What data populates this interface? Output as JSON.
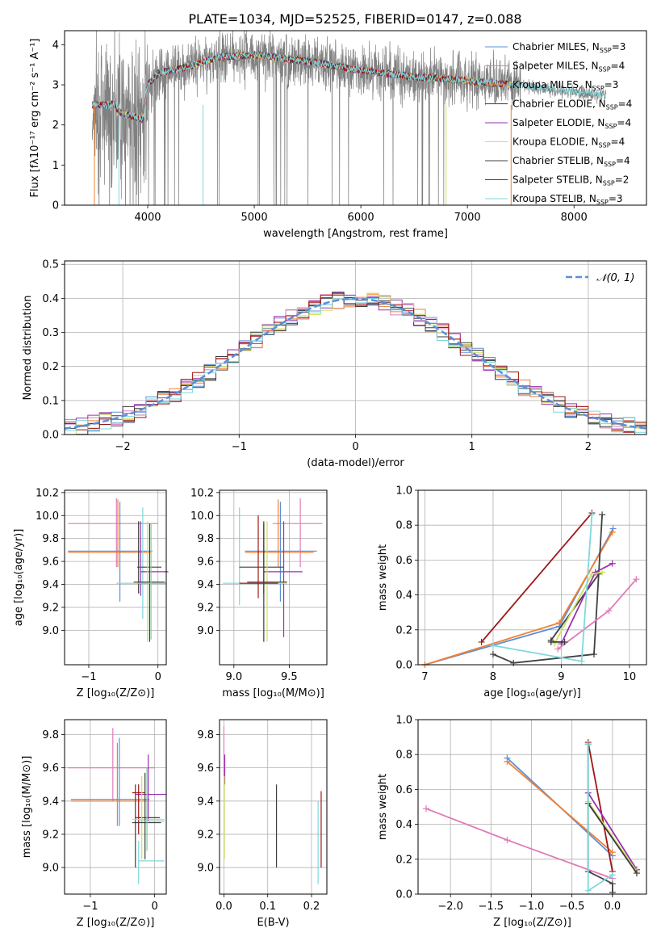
{
  "figure_title": "PLATE=1034, MJD=52525, FIBERID=0147, z=0.088",
  "colors": {
    "Chabrier MILES": "#5b8fd9",
    "Salpeter MILES": "#f28030",
    "Kroupa MILES": "#7fcfa0",
    "Chabrier ELODIE": "#3a3a3a",
    "Salpeter ELODIE": "#9a30b0",
    "Kroupa ELODIE": "#cfe060",
    "Chabrier STELIB": "#404040",
    "Salpeter STELIB": "#a01515",
    "Kroupa STELIB": "#7fd8dc",
    "Salpeter ELODIE alt": "#e07bb8",
    "normal": "#5b8fd9",
    "gray_data": "#808080"
  },
  "chart_data": [
    {
      "id": "spectrum",
      "type": "line",
      "title": "PLATE=1034, MJD=52525, FIBERID=0147, z=0.088",
      "xlabel": "wavelength [Angstrom, rest frame]",
      "ylabel": "Flux [fλ10⁻¹⁷ erg cm⁻² s⁻¹ A⁻¹]",
      "xlim": [
        3220,
        8680
      ],
      "ylim": [
        0,
        4.35
      ],
      "xticks": [
        4000,
        5000,
        6000,
        7000,
        8000
      ],
      "yticks": [
        0,
        1,
        2,
        3,
        4
      ],
      "x_range": [
        3480,
        7420
      ],
      "continuum": [
        [
          3480,
          2.5
        ],
        [
          3700,
          2.5
        ],
        [
          3720,
          2.35
        ],
        [
          3800,
          2.25
        ],
        [
          3900,
          2.2
        ],
        [
          3950,
          2.1
        ],
        [
          4000,
          3.0
        ],
        [
          4100,
          3.3
        ],
        [
          4300,
          3.4
        ],
        [
          4500,
          3.55
        ],
        [
          4700,
          3.7
        ],
        [
          5000,
          3.75
        ],
        [
          5300,
          3.65
        ],
        [
          5600,
          3.55
        ],
        [
          5900,
          3.4
        ],
        [
          6200,
          3.3
        ],
        [
          6500,
          3.2
        ],
        [
          6800,
          3.15
        ],
        [
          7000,
          3.1
        ],
        [
          7200,
          3.05
        ],
        [
          7420,
          3.0
        ]
      ],
      "data_extra_x_to": 8300,
      "legend": [
        {
          "label": "Chabrier MILES, N",
          "sub": "SSP",
          "tail": "=3"
        },
        {
          "label": "Salpeter MILES, N",
          "sub": "SSP",
          "tail": "=4"
        },
        {
          "label": "Kroupa MILES, N",
          "sub": "SSP",
          "tail": "=3"
        },
        {
          "label": "Chabrier ELODIE, N",
          "sub": "SSP",
          "tail": "=4"
        },
        {
          "label": "Salpeter ELODIE, N",
          "sub": "SSP",
          "tail": "=4"
        },
        {
          "label": "Kroupa ELODIE, N",
          "sub": "SSP",
          "tail": "=4"
        },
        {
          "label": "Chabrier STELIB, N",
          "sub": "SSP",
          "tail": "=4"
        },
        {
          "label": "Salpeter STELIB, N",
          "sub": "SSP",
          "tail": "=2"
        },
        {
          "label": "Kroupa STELIB, N",
          "sub": "SSP",
          "tail": "=3"
        }
      ],
      "legend_colors": [
        "#5b8fd9",
        "#e07bb8",
        "#f28030",
        "#3a3a3a",
        "#9a30b0",
        "#cfe060",
        "#404040",
        "#a01515",
        "#7fd8dc"
      ],
      "legend_placement": "upper-right"
    },
    {
      "id": "residuals",
      "type": "line",
      "xlabel": "(data-model)/error",
      "ylabel": "Normed distribution",
      "xlim": [
        -2.5,
        2.5
      ],
      "ylim": [
        0,
        0.51
      ],
      "xticks": [
        -2,
        -1,
        0,
        1,
        2
      ],
      "yticks": [
        0.0,
        0.1,
        0.2,
        0.3,
        0.4,
        0.5
      ],
      "grid": true,
      "bin_width": 0.1,
      "legend": [
        {
          "label": "𝒩(0, 1)"
        }
      ],
      "legend_placement": "upper-right"
    },
    {
      "id": "age_vs_Z",
      "type": "scatter",
      "xlabel": "Z [log₁₀(Z/Z⊙)]",
      "ylabel": "age [log₁₀(age/yr)]",
      "xlim": [
        -1.35,
        0.12
      ],
      "ylim": [
        8.7,
        10.22
      ],
      "xticks": [
        -1,
        0
      ],
      "yticks": [
        9.0,
        9.2,
        9.4,
        9.6,
        9.8,
        10.0,
        10.2
      ],
      "grid": true,
      "crosses": [
        {
          "color": "#e07bb8",
          "x": -0.6,
          "y": 9.93,
          "xlo": -1.3,
          "xhi": 0.0,
          "ylo": 9.55,
          "yhi": 10.15
        },
        {
          "color": "#f28030",
          "x": -0.58,
          "y": 9.68,
          "xlo": -1.3,
          "xhi": -0.1,
          "ylo": 9.55,
          "yhi": 10.14
        },
        {
          "color": "#5b8fd9",
          "x": -0.55,
          "y": 9.69,
          "xlo": -1.3,
          "xhi": -0.08,
          "ylo": 9.25,
          "yhi": 10.12
        },
        {
          "color": "#7fd8dc",
          "x": -0.22,
          "y": 9.41,
          "xlo": -0.6,
          "xhi": 0.05,
          "ylo": 9.1,
          "yhi": 10.07
        },
        {
          "color": "#404040",
          "x": -0.28,
          "y": 9.55,
          "xlo": -0.3,
          "xhi": 0.05,
          "ylo": 9.32,
          "yhi": 9.95
        },
        {
          "color": "#9a30b0",
          "x": -0.25,
          "y": 9.51,
          "xlo": -0.25,
          "xhi": 0.15,
          "ylo": 9.3,
          "yhi": 9.95
        },
        {
          "color": "#cfe060",
          "x": -0.15,
          "y": 9.41,
          "xlo": -0.35,
          "xhi": 0.12,
          "ylo": 8.9,
          "yhi": 9.95
        },
        {
          "color": "#3a3a3a",
          "x": -0.12,
          "y": 9.42,
          "xlo": -0.35,
          "xhi": 0.1,
          "ylo": 8.9,
          "yhi": 9.93
        },
        {
          "color": "#7fcfa0",
          "x": -0.1,
          "y": 9.41,
          "xlo": -0.3,
          "xhi": 0.12,
          "ylo": 8.92,
          "yhi": 9.93
        }
      ]
    },
    {
      "id": "age_vs_mass",
      "type": "scatter",
      "xlabel": "mass [log₁₀(M/M⊙)]",
      "ylabel": "",
      "xlim": [
        8.87,
        9.84
      ],
      "ylim": [
        8.7,
        10.22
      ],
      "xticks": [
        9.0,
        9.5
      ],
      "yticks": [
        9.0,
        9.2,
        9.4,
        9.6,
        9.8,
        10.0,
        10.2
      ],
      "grid": true,
      "crosses": [
        {
          "color": "#e07bb8",
          "x": 9.6,
          "y": 9.93,
          "xlo": 9.35,
          "xhi": 9.8,
          "ylo": 9.55,
          "yhi": 10.15
        },
        {
          "color": "#f28030",
          "x": 9.4,
          "y": 9.68,
          "xlo": 9.1,
          "xhi": 9.72,
          "ylo": 9.55,
          "yhi": 10.14
        },
        {
          "color": "#5b8fd9",
          "x": 9.42,
          "y": 9.69,
          "xlo": 9.1,
          "xhi": 9.75,
          "ylo": 9.25,
          "yhi": 10.12
        },
        {
          "color": "#7fd8dc",
          "x": 9.05,
          "y": 9.41,
          "xlo": 8.9,
          "xhi": 9.28,
          "ylo": 9.22,
          "yhi": 10.07
        },
        {
          "color": "#404040",
          "x": 9.27,
          "y": 9.55,
          "xlo": 9.05,
          "xhi": 9.45,
          "ylo": 9.32,
          "yhi": 9.95
        },
        {
          "color": "#9a30b0",
          "x": 9.45,
          "y": 9.51,
          "xlo": 9.27,
          "xhi": 9.62,
          "ylo": 8.94,
          "yhi": 9.95
        },
        {
          "color": "#cfe060",
          "x": 9.3,
          "y": 9.41,
          "xlo": 9.12,
          "xhi": 9.48,
          "ylo": 8.9,
          "yhi": 9.95
        },
        {
          "color": "#3a3a3a",
          "x": 9.27,
          "y": 9.42,
          "xlo": 9.12,
          "xhi": 9.48,
          "ylo": 8.9,
          "yhi": 9.93
        },
        {
          "color": "#a01515",
          "x": 9.22,
          "y": 9.41,
          "xlo": 9.05,
          "xhi": 9.4,
          "ylo": 9.28,
          "yhi": 10.0
        }
      ]
    },
    {
      "id": "weight_vs_age",
      "type": "line",
      "xlabel": "age [log₁₀(age/yr)]",
      "ylabel": "mass weight",
      "xlim": [
        6.9,
        10.25
      ],
      "ylim": [
        0,
        1.0
      ],
      "xticks": [
        7,
        8,
        9,
        10
      ],
      "yticks": [
        0.0,
        0.2,
        0.4,
        0.6,
        0.8,
        1.0
      ],
      "grid": true,
      "series": [
        {
          "color": "#a01515",
          "points": [
            [
              7.83,
              0.13
            ],
            [
              9.45,
              0.87
            ]
          ]
        },
        {
          "color": "#5b8fd9",
          "points": [
            [
              7.0,
              0.0
            ],
            [
              8.97,
              0.22
            ],
            [
              9.76,
              0.78
            ]
          ]
        },
        {
          "color": "#f28030",
          "points": [
            [
              7.0,
              0.0
            ],
            [
              8.97,
              0.24
            ],
            [
              9.75,
              0.76
            ]
          ]
        },
        {
          "color": "#404040",
          "points": [
            [
              8.0,
              0.06
            ],
            [
              8.3,
              0.01
            ],
            [
              9.48,
              0.06
            ],
            [
              9.6,
              0.86
            ]
          ]
        },
        {
          "color": "#404040",
          "points": [
            [
              8.85,
              0.14
            ],
            [
              9.55,
              0.52
            ]
          ]
        },
        {
          "color": "#9a30b0",
          "points": [
            [
              9.0,
              0.12
            ],
            [
              9.5,
              0.53
            ],
            [
              9.75,
              0.58
            ]
          ]
        },
        {
          "color": "#cfe060",
          "points": [
            [
              8.9,
              0.12
            ],
            [
              9.45,
              0.52
            ],
            [
              9.6,
              0.53
            ]
          ]
        },
        {
          "color": "#e07bb8",
          "points": [
            [
              8.95,
              0.09
            ],
            [
              9.7,
              0.31
            ],
            [
              10.1,
              0.49
            ]
          ]
        },
        {
          "color": "#7fd8dc",
          "points": [
            [
              8.0,
              0.11
            ],
            [
              9.3,
              0.02
            ],
            [
              9.45,
              0.86
            ]
          ]
        },
        {
          "color": "#3a3a3a",
          "points": [
            [
              8.85,
              0.13
            ],
            [
              9.05,
              0.13
            ]
          ]
        }
      ]
    },
    {
      "id": "mass_vs_Z",
      "type": "scatter",
      "xlabel": "Z [log₁₀(Z/Z⊙)]",
      "ylabel": "mass [log₁₀(M/M⊙)]",
      "xlim": [
        -1.4,
        0.18
      ],
      "ylim": [
        8.84,
        9.89
      ],
      "xticks": [
        -1,
        0
      ],
      "yticks": [
        9.0,
        9.2,
        9.4,
        9.6,
        9.8
      ],
      "grid": true,
      "crosses": [
        {
          "color": "#e07bb8",
          "x": -0.65,
          "y": 9.6,
          "xlo": -1.35,
          "xhi": 0.0,
          "ylo": 9.4,
          "yhi": 9.84
        },
        {
          "color": "#f28030",
          "x": -0.58,
          "y": 9.4,
          "xlo": -1.3,
          "xhi": -0.1,
          "ylo": 9.25,
          "yhi": 9.75
        },
        {
          "color": "#5b8fd9",
          "x": -0.55,
          "y": 9.41,
          "xlo": -1.3,
          "xhi": -0.08,
          "ylo": 9.25,
          "yhi": 9.78
        },
        {
          "color": "#9a30b0",
          "x": -0.1,
          "y": 9.44,
          "xlo": -0.3,
          "xhi": 0.18,
          "ylo": 9.28,
          "yhi": 9.68
        },
        {
          "color": "#a01515",
          "x": -0.25,
          "y": 9.45,
          "xlo": -0.35,
          "xhi": -0.15,
          "ylo": 9.2,
          "yhi": 9.5
        },
        {
          "color": "#404040",
          "x": -0.3,
          "y": 9.3,
          "xlo": -0.3,
          "xhi": 0.08,
          "ylo": 9.0,
          "yhi": 9.5
        },
        {
          "color": "#cfe060",
          "x": -0.2,
          "y": 9.29,
          "xlo": -0.35,
          "xhi": 0.15,
          "ylo": 9.05,
          "yhi": 9.55
        },
        {
          "color": "#3a3a3a",
          "x": -0.15,
          "y": 9.27,
          "xlo": -0.35,
          "xhi": 0.1,
          "ylo": 9.05,
          "yhi": 9.57
        },
        {
          "color": "#7fd8dc",
          "x": -0.25,
          "y": 9.04,
          "xlo": -0.25,
          "xhi": 0.15,
          "ylo": 8.9,
          "yhi": 9.16
        },
        {
          "color": "#7fcfa0",
          "x": -0.12,
          "y": 9.28,
          "xlo": -0.25,
          "xhi": 0.15,
          "ylo": 9.1,
          "yhi": 9.6
        }
      ]
    },
    {
      "id": "mass_vs_ebv",
      "type": "scatter",
      "xlabel": "E(B-V)",
      "ylabel": "",
      "xlim": [
        -0.01,
        0.235
      ],
      "ylim": [
        8.84,
        9.89
      ],
      "xticks": [
        0.0,
        0.1,
        0.2
      ],
      "yticks": [
        9.0,
        9.2,
        9.4,
        9.6,
        9.8
      ],
      "grid": true,
      "crosses": [
        {
          "color": "#e07bb8",
          "x": 0.0,
          "y": 9.75,
          "xlo": 0.0,
          "xhi": 0.0,
          "ylo": 9.55,
          "yhi": 9.85
        },
        {
          "color": "#9a30b0",
          "x": 0.002,
          "y": 9.6,
          "xlo": 0.002,
          "xhi": 0.002,
          "ylo": 9.5,
          "yhi": 9.68
        },
        {
          "color": "#cfe060",
          "x": 0.001,
          "y": 9.3,
          "xlo": 0.001,
          "xhi": 0.001,
          "ylo": 9.05,
          "yhi": 9.55
        },
        {
          "color": "#404040",
          "x": 0.12,
          "y": 9.25,
          "xlo": 0.12,
          "xhi": 0.12,
          "ylo": 9.0,
          "yhi": 9.5
        },
        {
          "color": "#7fd8dc",
          "x": 0.215,
          "y": 9.15,
          "xlo": 0.215,
          "xhi": 0.215,
          "ylo": 8.9,
          "yhi": 9.4
        },
        {
          "color": "#a01515",
          "x": 0.222,
          "y": 9.3,
          "xlo": 0.222,
          "xhi": 0.222,
          "ylo": 9.0,
          "yhi": 9.46
        }
      ]
    },
    {
      "id": "weight_vs_Z",
      "type": "line",
      "xlabel": "Z [log₁₀(Z/Z⊙)]",
      "ylabel": "mass weight",
      "xlim": [
        -2.4,
        0.42
      ],
      "ylim": [
        0,
        1.0
      ],
      "xticks": [
        -2.0,
        -1.5,
        -1.0,
        -0.5,
        0.0
      ],
      "yticks": [
        0.0,
        0.2,
        0.4,
        0.6,
        0.8,
        1.0
      ],
      "grid": true,
      "series": [
        {
          "color": "#5b8fd9",
          "points": [
            [
              -1.3,
              0.78
            ],
            [
              0.0,
              0.22
            ]
          ]
        },
        {
          "color": "#f28030",
          "points": [
            [
              -1.3,
              0.76
            ],
            [
              0.0,
              0.24
            ]
          ]
        },
        {
          "color": "#a01515",
          "points": [
            [
              -0.3,
              0.87
            ],
            [
              0.0,
              0.13
            ]
          ]
        },
        {
          "color": "#404040",
          "points": [
            [
              -0.3,
              0.86
            ],
            [
              -0.3,
              0.13
            ],
            [
              0.0,
              0.06
            ],
            [
              0.0,
              0.01
            ]
          ]
        },
        {
          "color": "#9a30b0",
          "points": [
            [
              -0.3,
              0.58
            ],
            [
              0.3,
              0.14
            ]
          ]
        },
        {
          "color": "#cfe060",
          "points": [
            [
              -0.3,
              0.53
            ],
            [
              0.3,
              0.13
            ]
          ]
        },
        {
          "color": "#3a3a3a",
          "points": [
            [
              -0.3,
              0.52
            ],
            [
              0.3,
              0.12
            ]
          ]
        },
        {
          "color": "#e07bb8",
          "points": [
            [
              -2.3,
              0.49
            ],
            [
              -1.3,
              0.31
            ],
            [
              0.0,
              0.09
            ]
          ]
        },
        {
          "color": "#7fd8dc",
          "points": [
            [
              -0.3,
              0.86
            ],
            [
              -0.3,
              0.02
            ],
            [
              0.0,
              0.11
            ]
          ]
        }
      ]
    }
  ]
}
